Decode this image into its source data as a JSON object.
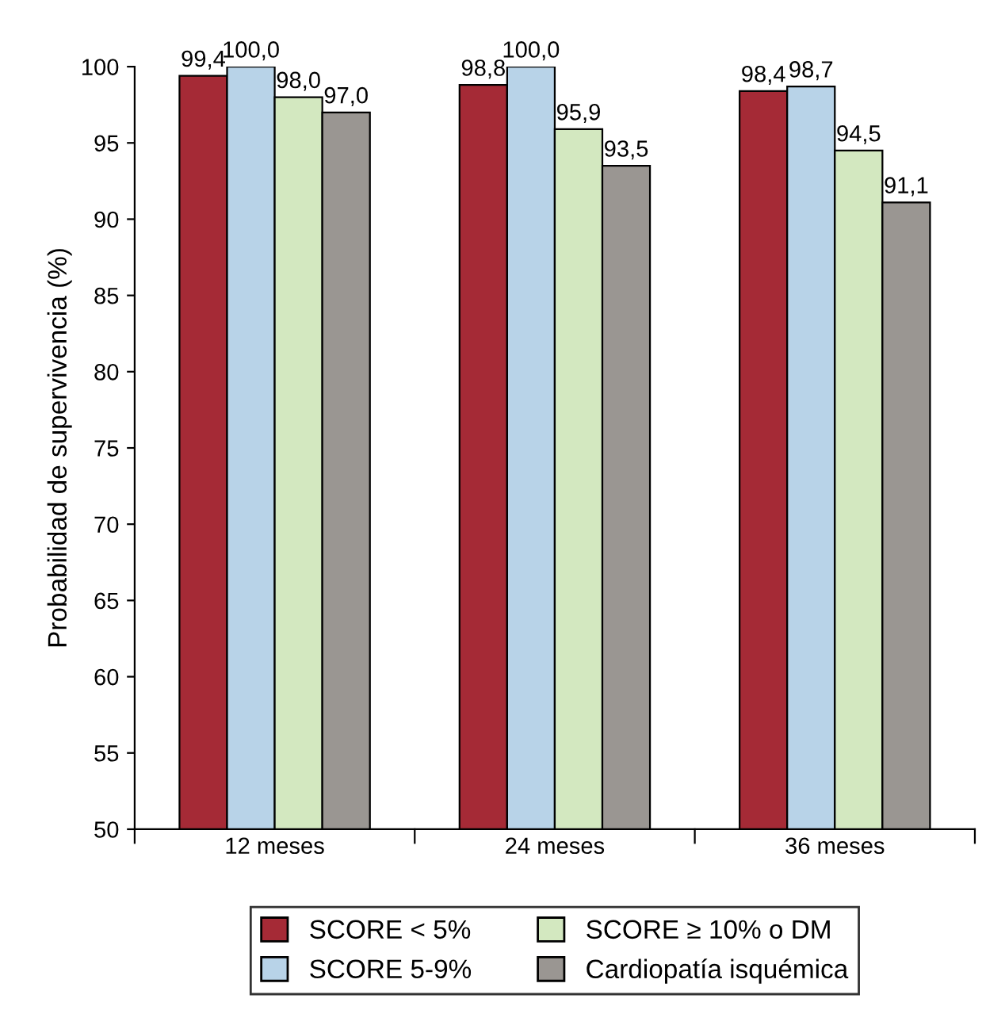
{
  "chart_data": {
    "type": "bar",
    "ylabel": "Probabilidad de supervivencia (%)",
    "categories": [
      "12 meses",
      "24 meses",
      "36 meses"
    ],
    "series": [
      {
        "name": "SCORE < 5%",
        "color": "#a52a36",
        "values": [
          99.4,
          98.8,
          98.4
        ],
        "value_labels": [
          "99,4",
          "98,8",
          "98,4"
        ]
      },
      {
        "name": "SCORE 5-9%",
        "color": "#b8d3e8",
        "values": [
          100.0,
          100.0,
          98.7
        ],
        "value_labels": [
          "100,0",
          "100,0",
          "98,7"
        ]
      },
      {
        "name": "SCORE ≥ 10% o DM",
        "color": "#d3e8c0",
        "values": [
          98.0,
          95.9,
          94.5
        ],
        "value_labels": [
          "98,0",
          "95,9",
          "94,5"
        ]
      },
      {
        "name": "Cardiopatía isquémica",
        "color": "#9a9692",
        "values": [
          97.0,
          93.5,
          91.1
        ],
        "value_labels": [
          "97,0",
          "93,5",
          "91,1"
        ]
      }
    ],
    "ylim": [
      50,
      100
    ],
    "yticks": [
      50,
      55,
      60,
      65,
      70,
      75,
      80,
      85,
      90,
      95,
      100
    ],
    "grid": false,
    "legend": "bottom"
  }
}
